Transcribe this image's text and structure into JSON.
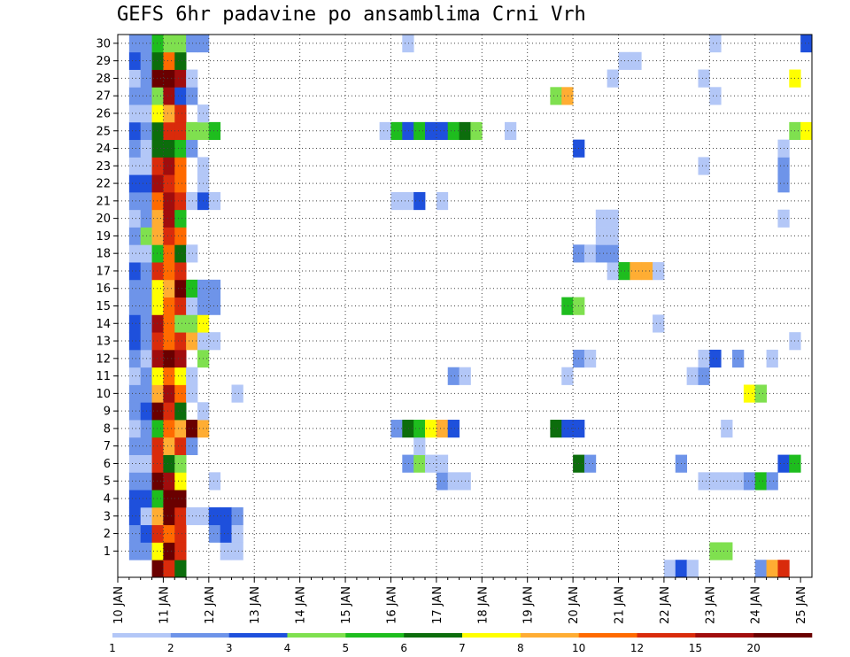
{
  "chart_data": {
    "type": "heatmap",
    "title": "GEFS 6hr padavine po ansamblima Crni Vrh",
    "x_tick_labels": [
      "10 JAN",
      "11 JAN",
      "12 JAN",
      "13 JAN",
      "14 JAN",
      "15 JAN",
      "16 JAN",
      "17 JAN",
      "18 JAN",
      "19 JAN",
      "20 JAN",
      "21 JAN",
      "22 JAN",
      "23 JAN",
      "24 JAN",
      "25 JAN"
    ],
    "y_tick_labels": [
      "1",
      "2",
      "3",
      "4",
      "5",
      "6",
      "7",
      "8",
      "9",
      "10",
      "11",
      "12",
      "13",
      "14",
      "15",
      "16",
      "17",
      "18",
      "19",
      "20",
      "21",
      "22",
      "23",
      "24",
      "25",
      "26",
      "27",
      "28",
      "29",
      "30"
    ],
    "x_start": "10 JAN 00Z",
    "time_step_hours": 6,
    "num_steps": 61,
    "num_members": 30,
    "grid": true,
    "colorbar": {
      "labels": [
        "1",
        "2",
        "3",
        "4",
        "5",
        "6",
        "7",
        "8",
        "10",
        "12",
        "15",
        "20"
      ],
      "colors": [
        "#b3c7f7",
        "#6e94e9",
        "#1e50dc",
        "#7fe04f",
        "#1ebd1e",
        "#0c6d0c",
        "#ffff00",
        "#ffad33",
        "#ff6a00",
        "#d92b0b",
        "#a10d0d",
        "#6a0000"
      ]
    },
    "values": {
      "30": [
        [
          1,
          2
        ],
        [
          2,
          2
        ],
        [
          3,
          5
        ],
        [
          4,
          4
        ],
        [
          5,
          4
        ],
        [
          6,
          2
        ],
        [
          7,
          2
        ],
        [
          25,
          1
        ],
        [
          52,
          1
        ],
        [
          60,
          3
        ]
      ],
      "29": [
        [
          1,
          3
        ],
        [
          2,
          2
        ],
        [
          3,
          6
        ],
        [
          4,
          9
        ],
        [
          5,
          6
        ],
        [
          44,
          1
        ],
        [
          45,
          1
        ]
      ],
      "28": [
        [
          1,
          1
        ],
        [
          2,
          2
        ],
        [
          3,
          12
        ],
        [
          4,
          12
        ],
        [
          5,
          11
        ],
        [
          6,
          1
        ],
        [
          43,
          1
        ],
        [
          51,
          1
        ],
        [
          59,
          7
        ]
      ],
      "27": [
        [
          1,
          2
        ],
        [
          2,
          2
        ],
        [
          3,
          4
        ],
        [
          4,
          11
        ],
        [
          5,
          3
        ],
        [
          6,
          2
        ],
        [
          38,
          4
        ],
        [
          39,
          8
        ],
        [
          52,
          1
        ]
      ],
      "26": [
        [
          1,
          1
        ],
        [
          2,
          1
        ],
        [
          3,
          7
        ],
        [
          4,
          8
        ],
        [
          5,
          10
        ],
        [
          7,
          1
        ]
      ],
      "25": [
        [
          1,
          3
        ],
        [
          2,
          2
        ],
        [
          3,
          6
        ],
        [
          4,
          10
        ],
        [
          5,
          10
        ],
        [
          6,
          4
        ],
        [
          7,
          4
        ],
        [
          8,
          5
        ],
        [
          23,
          1
        ],
        [
          24,
          5
        ],
        [
          25,
          3
        ],
        [
          26,
          5
        ],
        [
          27,
          3
        ],
        [
          28,
          3
        ],
        [
          29,
          5
        ],
        [
          30,
          6
        ],
        [
          31,
          4
        ],
        [
          34,
          1
        ],
        [
          59,
          4
        ],
        [
          60,
          7
        ]
      ],
      "24": [
        [
          1,
          2
        ],
        [
          2,
          1
        ],
        [
          3,
          6
        ],
        [
          4,
          6
        ],
        [
          5,
          5
        ],
        [
          6,
          2
        ],
        [
          40,
          3
        ],
        [
          58,
          1
        ]
      ],
      "23": [
        [
          1,
          1
        ],
        [
          2,
          1
        ],
        [
          3,
          10
        ],
        [
          4,
          11
        ],
        [
          5,
          9
        ],
        [
          7,
          1
        ],
        [
          51,
          1
        ],
        [
          58,
          2
        ]
      ],
      "22": [
        [
          1,
          3
        ],
        [
          2,
          3
        ],
        [
          3,
          11
        ],
        [
          4,
          10
        ],
        [
          5,
          9
        ],
        [
          7,
          1
        ],
        [
          58,
          2
        ]
      ],
      "21": [
        [
          1,
          2
        ],
        [
          2,
          2
        ],
        [
          3,
          9
        ],
        [
          4,
          11
        ],
        [
          5,
          10
        ],
        [
          6,
          1
        ],
        [
          7,
          3
        ],
        [
          8,
          1
        ],
        [
          24,
          1
        ],
        [
          25,
          1
        ],
        [
          26,
          3
        ],
        [
          28,
          1
        ]
      ],
      "20": [
        [
          1,
          1
        ],
        [
          2,
          2
        ],
        [
          3,
          8
        ],
        [
          4,
          11
        ],
        [
          5,
          5
        ],
        [
          42,
          1
        ],
        [
          43,
          1
        ],
        [
          58,
          1
        ]
      ],
      "19": [
        [
          1,
          2
        ],
        [
          2,
          4
        ],
        [
          3,
          8
        ],
        [
          4,
          10
        ],
        [
          5,
          9
        ],
        [
          42,
          1
        ],
        [
          43,
          1
        ]
      ],
      "18": [
        [
          1,
          1
        ],
        [
          2,
          1
        ],
        [
          3,
          5
        ],
        [
          4,
          9
        ],
        [
          5,
          6
        ],
        [
          6,
          1
        ],
        [
          40,
          2
        ],
        [
          41,
          1
        ],
        [
          42,
          2
        ],
        [
          43,
          2
        ]
      ],
      "17": [
        [
          1,
          3
        ],
        [
          2,
          2
        ],
        [
          3,
          10
        ],
        [
          4,
          9
        ],
        [
          5,
          10
        ],
        [
          43,
          1
        ],
        [
          44,
          5
        ],
        [
          45,
          8
        ],
        [
          46,
          8
        ],
        [
          47,
          1
        ]
      ],
      "16": [
        [
          1,
          2
        ],
        [
          2,
          2
        ],
        [
          3,
          7
        ],
        [
          4,
          8
        ],
        [
          5,
          12
        ],
        [
          6,
          5
        ],
        [
          7,
          2
        ],
        [
          8,
          2
        ]
      ],
      "15": [
        [
          1,
          2
        ],
        [
          2,
          2
        ],
        [
          3,
          7
        ],
        [
          4,
          9
        ],
        [
          5,
          10
        ],
        [
          6,
          1
        ],
        [
          7,
          2
        ],
        [
          8,
          2
        ],
        [
          39,
          5
        ],
        [
          40,
          4
        ]
      ],
      "14": [
        [
          1,
          3
        ],
        [
          2,
          2
        ],
        [
          3,
          11
        ],
        [
          4,
          9
        ],
        [
          5,
          4
        ],
        [
          6,
          4
        ],
        [
          7,
          7
        ],
        [
          47,
          1
        ]
      ],
      "13": [
        [
          1,
          3
        ],
        [
          2,
          2
        ],
        [
          3,
          10
        ],
        [
          4,
          9
        ],
        [
          5,
          10
        ],
        [
          6,
          8
        ],
        [
          7,
          1
        ],
        [
          8,
          1
        ],
        [
          59,
          1
        ]
      ],
      "12": [
        [
          1,
          2
        ],
        [
          2,
          1
        ],
        [
          3,
          11
        ],
        [
          4,
          12
        ],
        [
          5,
          11
        ],
        [
          7,
          4
        ],
        [
          40,
          2
        ],
        [
          41,
          1
        ],
        [
          51,
          1
        ],
        [
          52,
          3
        ],
        [
          54,
          2
        ],
        [
          57,
          1
        ]
      ],
      "11": [
        [
          1,
          1
        ],
        [
          2,
          2
        ],
        [
          3,
          7
        ],
        [
          4,
          9
        ],
        [
          5,
          7
        ],
        [
          6,
          1
        ],
        [
          29,
          2
        ],
        [
          30,
          1
        ],
        [
          39,
          1
        ],
        [
          50,
          1
        ],
        [
          51,
          2
        ]
      ],
      "10": [
        [
          1,
          2
        ],
        [
          2,
          2
        ],
        [
          3,
          8
        ],
        [
          4,
          11
        ],
        [
          5,
          9
        ],
        [
          6,
          1
        ],
        [
          10,
          1
        ],
        [
          55,
          7
        ],
        [
          56,
          4
        ]
      ],
      "9": [
        [
          1,
          2
        ],
        [
          2,
          3
        ],
        [
          3,
          12
        ],
        [
          4,
          10
        ],
        [
          5,
          6
        ],
        [
          7,
          1
        ]
      ],
      "8": [
        [
          1,
          1
        ],
        [
          2,
          2
        ],
        [
          3,
          5
        ],
        [
          4,
          9
        ],
        [
          5,
          8
        ],
        [
          6,
          12
        ],
        [
          7,
          8
        ],
        [
          24,
          2
        ],
        [
          25,
          6
        ],
        [
          26,
          5
        ],
        [
          27,
          7
        ],
        [
          28,
          8
        ],
        [
          29,
          3
        ],
        [
          38,
          6
        ],
        [
          39,
          3
        ],
        [
          40,
          3
        ],
        [
          53,
          1
        ]
      ],
      "7": [
        [
          1,
          2
        ],
        [
          2,
          2
        ],
        [
          3,
          10
        ],
        [
          4,
          8
        ],
        [
          5,
          10
        ],
        [
          6,
          2
        ],
        [
          26,
          1
        ]
      ],
      "6": [
        [
          1,
          1
        ],
        [
          2,
          1
        ],
        [
          3,
          10
        ],
        [
          4,
          6
        ],
        [
          5,
          4
        ],
        [
          25,
          2
        ],
        [
          26,
          4
        ],
        [
          27,
          1
        ],
        [
          28,
          1
        ],
        [
          40,
          6
        ],
        [
          41,
          2
        ],
        [
          49,
          2
        ],
        [
          58,
          3
        ],
        [
          59,
          5
        ]
      ],
      "5": [
        [
          1,
          2
        ],
        [
          2,
          2
        ],
        [
          3,
          12
        ],
        [
          4,
          11
        ],
        [
          5,
          7
        ],
        [
          8,
          1
        ],
        [
          28,
          2
        ],
        [
          29,
          1
        ],
        [
          30,
          1
        ],
        [
          51,
          1
        ],
        [
          52,
          1
        ],
        [
          53,
          1
        ],
        [
          54,
          1
        ],
        [
          55,
          2
        ],
        [
          56,
          5
        ],
        [
          57,
          2
        ]
      ],
      "4": [
        [
          1,
          3
        ],
        [
          2,
          3
        ],
        [
          3,
          5
        ],
        [
          4,
          12
        ],
        [
          5,
          12
        ]
      ],
      "3": [
        [
          1,
          3
        ],
        [
          2,
          1
        ],
        [
          3,
          8
        ],
        [
          4,
          12
        ],
        [
          5,
          10
        ],
        [
          6,
          1
        ],
        [
          7,
          1
        ],
        [
          8,
          3
        ],
        [
          9,
          3
        ],
        [
          10,
          2
        ]
      ],
      "2": [
        [
          1,
          2
        ],
        [
          2,
          3
        ],
        [
          3,
          10
        ],
        [
          4,
          9
        ],
        [
          5,
          10
        ],
        [
          8,
          2
        ],
        [
          9,
          3
        ],
        [
          10,
          1
        ]
      ],
      "1": [
        [
          1,
          2
        ],
        [
          2,
          2
        ],
        [
          3,
          7
        ],
        [
          4,
          12
        ],
        [
          5,
          10
        ],
        [
          9,
          1
        ],
        [
          10,
          1
        ],
        [
          52,
          4
        ],
        [
          53,
          4
        ]
      ],
      "0": [
        [
          3,
          12
        ],
        [
          4,
          10
        ],
        [
          5,
          6
        ],
        [
          48,
          1
        ],
        [
          49,
          3
        ],
        [
          50,
          1
        ],
        [
          56,
          2
        ],
        [
          57,
          8
        ],
        [
          58,
          10
        ]
      ]
    }
  }
}
